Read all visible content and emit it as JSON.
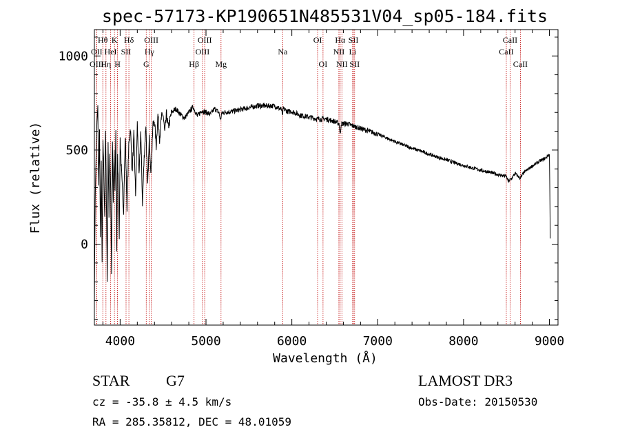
{
  "chart_data": {
    "type": "line",
    "title": "spec-57173-KP190651N485531V04_sp05-184.fits",
    "xlabel": "Wavelength (Å)",
    "ylabel": "Flux (relative)",
    "xlim": [
      3700,
      9100
    ],
    "ylim": [
      -430,
      1140
    ],
    "xticks": [
      4000,
      5000,
      6000,
      7000,
      8000,
      9000
    ],
    "yticks": [
      0,
      500,
      1000
    ],
    "x_minor_step": 200,
    "y_minor_step": 100,
    "grid": false,
    "line_color": "#000000",
    "marker_color": "#c00000",
    "series": [
      {
        "name": "spectrum",
        "x": [
          3700,
          3710,
          3720,
          3730,
          3740,
          3750,
          3760,
          3770,
          3780,
          3790,
          3800,
          3810,
          3820,
          3830,
          3840,
          3850,
          3860,
          3870,
          3880,
          3890,
          3900,
          3910,
          3920,
          3930,
          3940,
          3950,
          3960,
          3970,
          3980,
          3990,
          4000,
          4020,
          4040,
          4060,
          4080,
          4100,
          4120,
          4140,
          4160,
          4180,
          4200,
          4220,
          4240,
          4260,
          4280,
          4300,
          4320,
          4340,
          4360,
          4380,
          4400,
          4420,
          4440,
          4460,
          4480,
          4500,
          4520,
          4540,
          4560,
          4600,
          4650,
          4700,
          4750,
          4800,
          4850,
          4900,
          4950,
          5000,
          5050,
          5100,
          5150,
          5170,
          5180,
          5200,
          5300,
          5400,
          5500,
          5600,
          5700,
          5800,
          5880,
          5890,
          5900,
          5950,
          6000,
          6100,
          6200,
          6300,
          6400,
          6500,
          6550,
          6562,
          6575,
          6600,
          6650,
          6700,
          6800,
          6900,
          7000,
          7100,
          7200,
          7300,
          7400,
          7500,
          7600,
          7700,
          7800,
          7900,
          8000,
          8100,
          8200,
          8300,
          8400,
          8498,
          8520,
          8542,
          8560,
          8600,
          8662,
          8700,
          8800,
          8900,
          8950,
          8980,
          9000,
          9010
        ],
        "values": [
          -300,
          250,
          480,
          650,
          720,
          300,
          600,
          20,
          420,
          -100,
          560,
          380,
          150,
          600,
          250,
          -200,
          520,
          150,
          480,
          300,
          -150,
          560,
          200,
          500,
          260,
          620,
          -30,
          460,
          300,
          50,
          560,
          340,
          180,
          580,
          200,
          520,
          620,
          380,
          580,
          260,
          640,
          350,
          600,
          220,
          460,
          640,
          300,
          560,
          380,
          620,
          660,
          520,
          690,
          560,
          670,
          690,
          590,
          690,
          620,
          700,
          720,
          690,
          670,
          700,
          730,
          680,
          710,
          700,
          690,
          720,
          700,
          660,
          690,
          700,
          705,
          715,
          725,
          735,
          735,
          735,
          715,
          680,
          720,
          705,
          705,
          685,
          675,
          665,
          665,
          652,
          640,
          580,
          640,
          640,
          640,
          630,
          615,
          600,
          585,
          565,
          545,
          527,
          510,
          495,
          478,
          462,
          448,
          432,
          418,
          405,
          393,
          382,
          370,
          360,
          335,
          340,
          350,
          375,
          350,
          380,
          415,
          445,
          455,
          470,
          475,
          30
        ]
      }
    ],
    "line_markers": [
      {
        "label": "Hθ",
        "wl": 3798,
        "row": 1
      },
      {
        "label": "OII",
        "wl": 3727,
        "row": 2
      },
      {
        "label": "OIII",
        "wl": 3727,
        "row": 3
      },
      {
        "label": "Hη",
        "wl": 3835,
        "row": 3
      },
      {
        "label": "K",
        "wl": 3934,
        "row": 1
      },
      {
        "label": "HeI",
        "wl": 3889,
        "row": 2
      },
      {
        "label": "H",
        "wl": 3969,
        "row": 3
      },
      {
        "label": "SII",
        "wl": 4069,
        "row": 2
      },
      {
        "label": "Hδ",
        "wl": 4102,
        "row": 1
      },
      {
        "label": "OIII",
        "wl": 4363,
        "row": 1
      },
      {
        "label": "Hγ",
        "wl": 4341,
        "row": 2
      },
      {
        "label": "G",
        "wl": 4304,
        "row": 3
      },
      {
        "label": "Hβ",
        "wl": 4861,
        "row": 3
      },
      {
        "label": "OIII",
        "wl": 4985,
        "row": 1
      },
      {
        "label": "OIII",
        "wl": 4959,
        "row": 2
      },
      {
        "label": "Mg",
        "wl": 5175,
        "row": 3
      },
      {
        "label": "Na",
        "wl": 5893,
        "row": 2
      },
      {
        "label": "OI",
        "wl": 6300,
        "row": 1
      },
      {
        "label": "OI",
        "wl": 6363,
        "row": 3
      },
      {
        "label": "Hα",
        "wl": 6563,
        "row": 1
      },
      {
        "label": "NII",
        "wl": 6548,
        "row": 2
      },
      {
        "label": "NII",
        "wl": 6583,
        "row": 3
      },
      {
        "label": "SII",
        "wl": 6717,
        "row": 1
      },
      {
        "label": "Li",
        "wl": 6708,
        "row": 2
      },
      {
        "label": "SII",
        "wl": 6731,
        "row": 3
      },
      {
        "label": "CaII",
        "wl": 8542,
        "row": 1
      },
      {
        "label": "CaII",
        "wl": 8498,
        "row": 2
      },
      {
        "label": "CaII",
        "wl": 8662,
        "row": 3
      }
    ]
  },
  "info": {
    "class_label": "STAR",
    "subclass": "G7",
    "redshift_line": "cz = -35.8 ± 4.5 km/s",
    "coords_line": "RA = 285.35812, DEC =  48.01059",
    "survey": "LAMOST DR3",
    "obs_date": "Obs-Date: 20150530"
  }
}
